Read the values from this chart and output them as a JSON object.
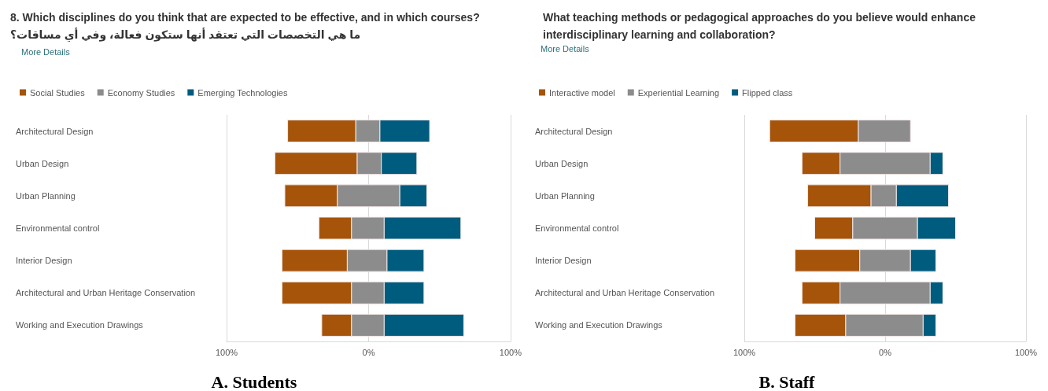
{
  "chart_data": [
    {
      "type": "bar",
      "orientation": "horizontal",
      "title": "8. Which disciplines do you think that are expected to be effective, and in which courses?",
      "subtitle": "ما هي التخصصات التي تعتقد أنها ستكون فعالة، وفي أي مساقات؟",
      "annotations": [
        "More Details",
        "A. Students"
      ],
      "categories": [
        "Architectural Design",
        "Urban Design",
        "Urban Planning",
        "Environmental control",
        "Interior Design",
        "Architectural and Urban Heritage Conservation",
        "Working and Execution Drawings"
      ],
      "series": [
        {
          "name": "Social Studies",
          "color": "#a5540a",
          "base": [
            -57,
            -66,
            -59,
            -35,
            -61,
            -61,
            -33
          ],
          "values": [
            48,
            58,
            37,
            23,
            46,
            49,
            21
          ]
        },
        {
          "name": "Economy Studies",
          "color": "#8c8c8c",
          "base": [
            -9,
            -8,
            -22,
            -12,
            -15,
            -12,
            -12
          ],
          "values": [
            17,
            17,
            44,
            23,
            28,
            23,
            23
          ]
        },
        {
          "name": "Emerging Technologies",
          "color": "#005c7e",
          "base": [
            8,
            9,
            22,
            11,
            13,
            11,
            11
          ],
          "values": [
            35,
            25,
            19,
            54,
            26,
            28,
            56
          ]
        }
      ],
      "xlim": [
        -100,
        100
      ],
      "xticks": [
        {
          "value": -100,
          "label": "100%"
        },
        {
          "value": 0,
          "label": "0%"
        },
        {
          "value": 100,
          "label": "100%"
        }
      ],
      "grid": "x",
      "legend": "top left"
    },
    {
      "type": "bar",
      "orientation": "horizontal",
      "title": "What teaching methods or pedagogical approaches do you believe would enhance interdisciplinary learning and collaboration?",
      "annotations": [
        "More Details",
        "B. Staff"
      ],
      "categories": [
        "Architectural Design",
        "Urban Design",
        "Urban Planning",
        "Environmental control",
        "Interior Design",
        "Architectural and Urban Heritage Conservation",
        "Working and Execution Drawings"
      ],
      "series": [
        {
          "name": "Interactive model",
          "color": "#a5540a",
          "base": [
            -82,
            -59,
            -55,
            -50,
            -64,
            -59,
            -64
          ],
          "values": [
            63,
            27,
            45,
            27,
            46,
            27,
            36
          ]
        },
        {
          "name": "Experiential Learning",
          "color": "#8c8c8c",
          "base": [
            -19,
            -32,
            -10,
            -23,
            -18,
            -32,
            -28
          ],
          "values": [
            37,
            64,
            18,
            46,
            36,
            64,
            55
          ]
        },
        {
          "name": "Flipped class",
          "color": "#005c7e",
          "base": [
            null,
            32,
            8,
            23,
            18,
            32,
            27
          ],
          "values": [
            null,
            9,
            37,
            27,
            18,
            9,
            9
          ]
        }
      ],
      "xlim": [
        -100,
        100
      ],
      "xticks": [
        {
          "value": -100,
          "label": "100%"
        },
        {
          "value": 0,
          "label": "0%"
        },
        {
          "value": 100,
          "label": "100%"
        }
      ],
      "grid": "x",
      "legend": "top left"
    }
  ]
}
